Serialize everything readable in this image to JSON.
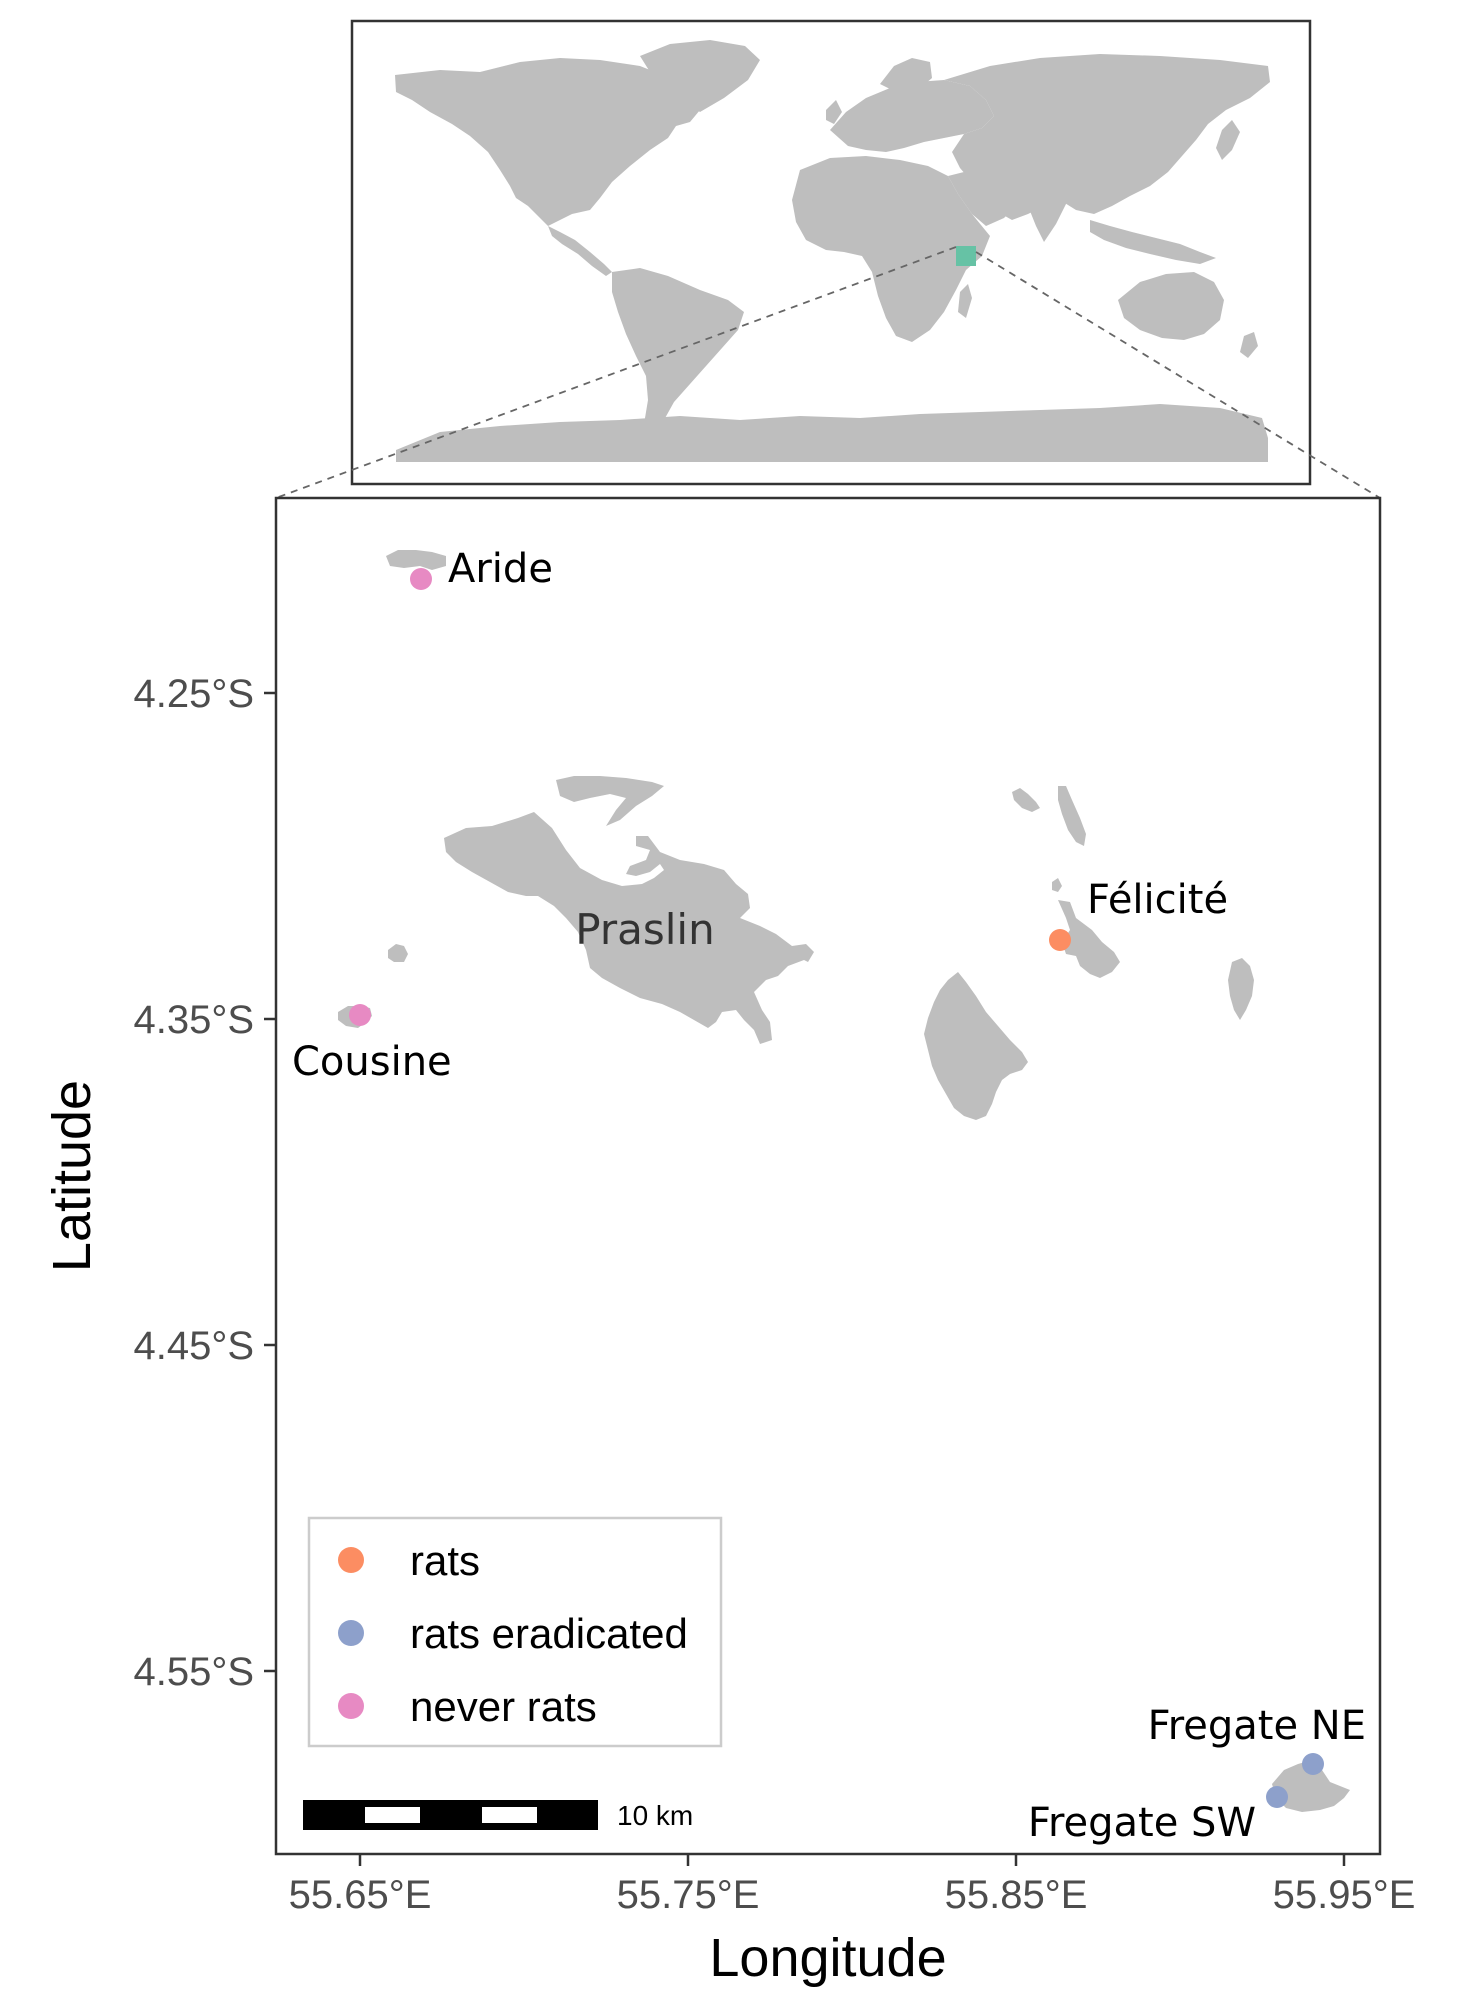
{
  "inset_map": {
    "highlight_color": "#66c2a5",
    "land_color": "#bebebe"
  },
  "main_map": {
    "x_axis": {
      "title": "Longitude",
      "ticks": [
        "55.65°E",
        "55.75°E",
        "55.85°E",
        "55.95°E"
      ]
    },
    "y_axis": {
      "title": "Latitude",
      "ticks": [
        "4.25°S",
        "4.35°S",
        "4.45°S",
        "4.55°S"
      ]
    },
    "island_labels": {
      "praslin": "Praslin"
    },
    "sites": [
      {
        "name": "Aride",
        "status": "never rats"
      },
      {
        "name": "Cousine",
        "status": "never rats"
      },
      {
        "name": "Félicité",
        "status": "rats"
      },
      {
        "name": "Fregate NE",
        "status": "rats eradicated"
      },
      {
        "name": "Fregate SW",
        "status": "rats eradicated"
      }
    ],
    "legend": [
      {
        "label": "rats",
        "color": "#fc8d62"
      },
      {
        "label": "rats eradicated",
        "color": "#8da0cb"
      },
      {
        "label": "never rats",
        "color": "#e78ac3"
      }
    ],
    "scale_bar": {
      "label": "10 km"
    }
  }
}
